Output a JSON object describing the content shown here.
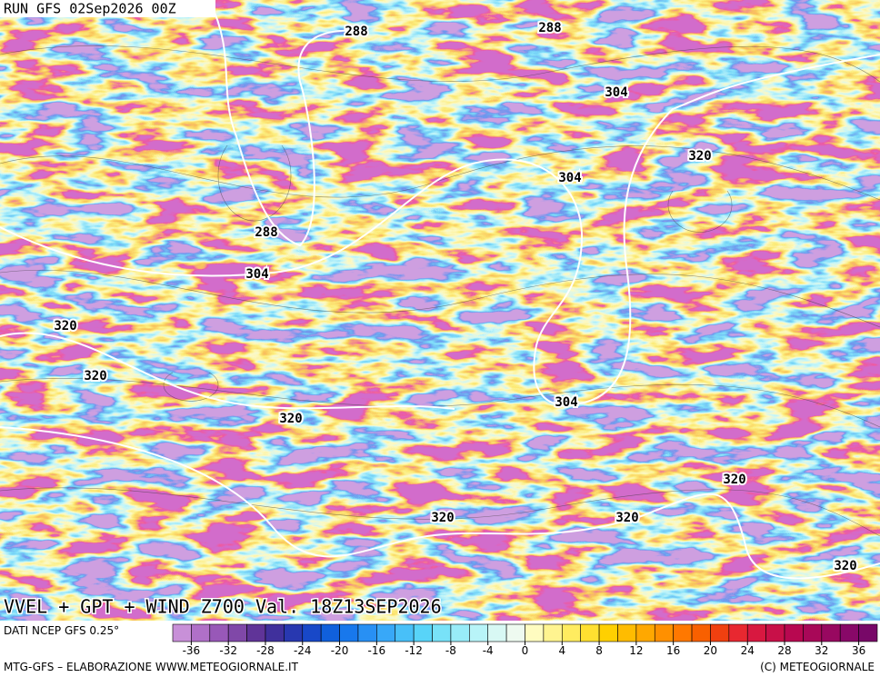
{
  "header": {
    "run": "RUN GFS 02Sep2026 00Z"
  },
  "title": "VVEL + GPT + WIND Z700 Val. 18Z13SEP2026",
  "contours": [
    {
      "label": "288"
    },
    {
      "label": "288"
    },
    {
      "label": "304"
    },
    {
      "label": "320"
    },
    {
      "label": "304"
    },
    {
      "label": "288"
    },
    {
      "label": "304"
    },
    {
      "label": "320"
    },
    {
      "label": "320"
    },
    {
      "label": "320"
    },
    {
      "label": "304"
    },
    {
      "label": "320"
    },
    {
      "label": "320"
    },
    {
      "label": "320"
    },
    {
      "label": "320"
    }
  ],
  "colorbar": {
    "source": "DATI NCEP GFS 0.25°",
    "range": [
      -38,
      38
    ],
    "ticks": [
      -36,
      -32,
      -28,
      -24,
      -20,
      -16,
      -12,
      -8,
      -4,
      0,
      4,
      8,
      12,
      16,
      20,
      24,
      28,
      32,
      36
    ],
    "colors": [
      "#c890d8",
      "#b070c8",
      "#9858b8",
      "#8048a8",
      "#603498",
      "#40309c",
      "#2838b0",
      "#1848c8",
      "#1060dc",
      "#1878ec",
      "#2890f4",
      "#38a8f8",
      "#48c0f8",
      "#58d4f8",
      "#78e2f8",
      "#98ecf8",
      "#b8f4f8",
      "#d8f8f4",
      "#eefaf0",
      "#fffcc0",
      "#fff490",
      "#ffec60",
      "#ffe030",
      "#ffd000",
      "#ffbc00",
      "#ffa800",
      "#ff9000",
      "#ff7800",
      "#f86000",
      "#f04010",
      "#e82830",
      "#d81840",
      "#c81048",
      "#b80850",
      "#a80858",
      "#980860",
      "#880868",
      "#780868"
    ]
  },
  "footer": {
    "left": "MTG-GFS – ELABORAZIONE WWW.METEOGIORNALE.IT",
    "right": "(C) METEOGIORNALE"
  }
}
